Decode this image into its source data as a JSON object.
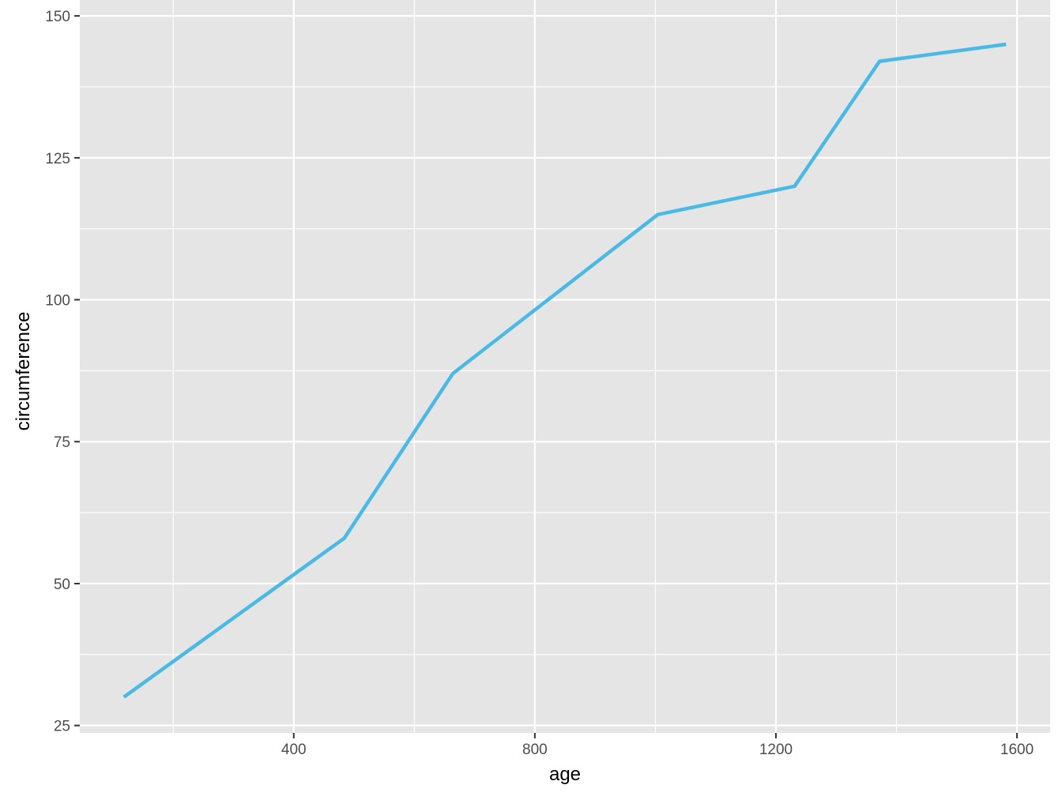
{
  "chart_data": {
    "type": "line",
    "title": "",
    "xlabel": "age",
    "ylabel": "circumference",
    "x": [
      118,
      484,
      664,
      1004,
      1231,
      1372,
      1582
    ],
    "series": [
      {
        "values": [
          30,
          58,
          87,
          115,
          120,
          142,
          145
        ],
        "color": "#4BB9E5"
      }
    ],
    "xlim": [
      45,
      1655
    ],
    "ylim": [
      23.7,
      152.8
    ],
    "xticks": [
      400,
      800,
      1200,
      1600
    ],
    "xtick_labels": [
      "400",
      "800",
      "1200",
      "1600"
    ],
    "yticks": [
      25,
      50,
      75,
      100,
      125,
      150
    ],
    "ytick_labels": [
      "25",
      "50",
      "75",
      "100",
      "125",
      "150"
    ],
    "grid": true,
    "panel_background": "#E5E5E5",
    "grid_color": "#FFFFFF"
  }
}
